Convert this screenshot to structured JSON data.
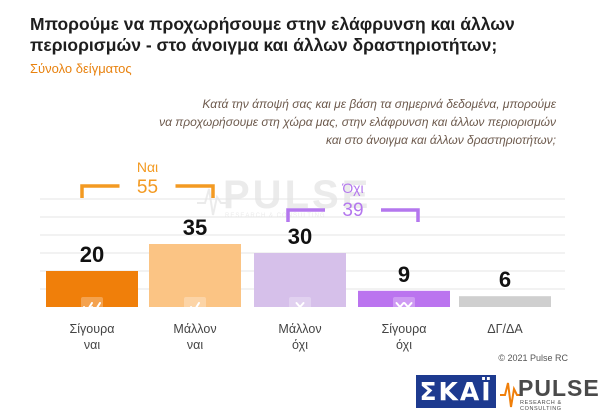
{
  "title": "Μπορούμε να προχωρήσουμε στην ελάφρυνση και άλλων περιορισμών - στο άνοιγμα και άλλων δραστηριοτήτων;",
  "subtitle": "Σύνολο δείγματος",
  "question_lines": [
    "Κατά την άποψή σας και με βάση τα σημερινά δεδομένα, μπορούμε",
    "να προχωρήσουμε στη χώρα μας, στην ελάφρυνση και άλλων περιορισμών",
    "και στο άνοιγμα και άλλων δραστηριοτήτων;"
  ],
  "watermark": {
    "word": "PULSE",
    "sub": "RESEARCH & CONSULTING"
  },
  "copyright": "© 2021 Pulse RC",
  "logos": {
    "skai": "ΣΚΑΪ",
    "pulse_word": "PULSE",
    "pulse_sub": "RESEARCH & CONSULTING"
  },
  "colors": {
    "orange_dark": "#f07f0a",
    "orange_light": "#fbc484",
    "purple_light": "#d6c0ea",
    "purple_dark": "#bb74ef",
    "gray": "#cfcfcf",
    "yes_group": "#f39a22",
    "no_group": "#b477ee"
  },
  "chart_data": {
    "type": "bar",
    "categories": [
      [
        "Σίγουρα",
        "ναι"
      ],
      [
        "Μάλλον",
        "ναι"
      ],
      [
        "Μάλλον",
        "όχι"
      ],
      [
        "Σίγουρα",
        "όχι"
      ],
      [
        "ΔΓ/ΔΑ"
      ]
    ],
    "values": [
      20,
      35,
      30,
      9,
      6
    ],
    "icons": [
      "double-check-icon",
      "check-icon",
      "cross-icon",
      "double-cross-icon",
      ""
    ],
    "ylim": [
      0,
      60
    ],
    "grid": true,
    "groups": [
      {
        "label": "Ναι",
        "total": "55",
        "from": 0,
        "to": 1,
        "color_key": "yes_group"
      },
      {
        "label": "Όχι",
        "total": "39",
        "from": 2,
        "to": 3,
        "color_key": "no_group"
      }
    ]
  }
}
